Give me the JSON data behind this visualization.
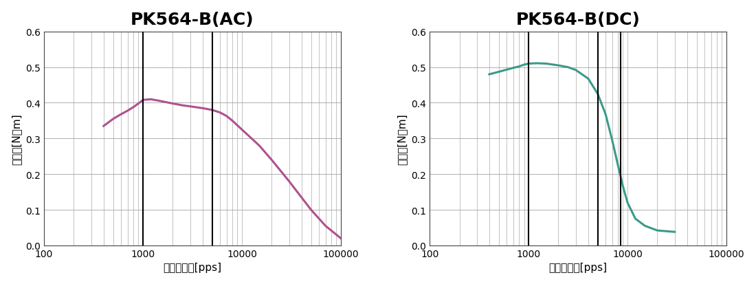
{
  "title_ac": "PK564-B(AC)",
  "title_dc": "PK564-B(DC)",
  "xlabel": "パルス速度[pps]",
  "ylabel": "トルク[N・m]",
  "xlim": [
    100,
    100000
  ],
  "ylim": [
    0,
    0.6
  ],
  "yticks": [
    0,
    0.1,
    0.2,
    0.3,
    0.4,
    0.5,
    0.6
  ],
  "vlines_ac": [
    1000,
    5000
  ],
  "vlines_dc": [
    1000,
    5000,
    8500
  ],
  "color_ac": "#b05090",
  "color_dc": "#3a9a8a",
  "vline_color": "#000000",
  "grid_color": "#aaaaaa",
  "bg_color": "#ffffff",
  "ac_x": [
    400,
    500,
    600,
    700,
    800,
    900,
    1000,
    1200,
    1500,
    2000,
    2500,
    3000,
    4000,
    5000,
    6000,
    7000,
    8000,
    10000,
    15000,
    20000,
    30000,
    50000,
    70000,
    100000
  ],
  "ac_y": [
    0.335,
    0.355,
    0.368,
    0.378,
    0.388,
    0.398,
    0.408,
    0.41,
    0.405,
    0.398,
    0.393,
    0.39,
    0.385,
    0.38,
    0.373,
    0.363,
    0.35,
    0.325,
    0.28,
    0.24,
    0.18,
    0.1,
    0.055,
    0.02
  ],
  "dc_x": [
    400,
    500,
    600,
    700,
    800,
    900,
    1000,
    1200,
    1500,
    2000,
    2500,
    3000,
    4000,
    5000,
    6000,
    7000,
    8000,
    9000,
    10000,
    12000,
    15000,
    20000,
    30000
  ],
  "dc_y": [
    0.48,
    0.487,
    0.493,
    0.498,
    0.502,
    0.507,
    0.51,
    0.511,
    0.51,
    0.505,
    0.5,
    0.492,
    0.468,
    0.425,
    0.368,
    0.295,
    0.225,
    0.165,
    0.12,
    0.075,
    0.055,
    0.042,
    0.038
  ],
  "title_fontsize": 18,
  "label_fontsize": 11,
  "tick_fontsize": 10,
  "line_width": 2.2
}
